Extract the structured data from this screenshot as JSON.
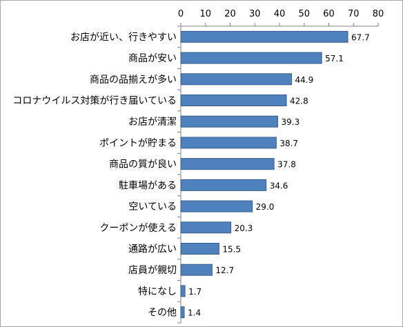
{
  "chart_data": {
    "type": "bar",
    "orientation": "horizontal",
    "categories": [
      "お店が近い、行きやすい",
      "商品が安い",
      "商品の品揃えが多い",
      "コロナウイルス対策が行き届いている",
      "お店が清潔",
      "ポイントが貯まる",
      "商品の質が良い",
      "駐車場がある",
      "空いている",
      "クーポンが使える",
      "通路が広い",
      "店員が親切",
      "特になし",
      "その他"
    ],
    "values": [
      67.7,
      57.1,
      44.9,
      42.8,
      39.3,
      38.7,
      37.8,
      34.6,
      29.0,
      20.3,
      15.5,
      12.7,
      1.7,
      1.4
    ],
    "value_labels": [
      "67.7",
      "57.1",
      "44.9",
      "42.8",
      "39.3",
      "38.7",
      "37.8",
      "34.6",
      "29.0",
      "20.3",
      "15.5",
      "12.7",
      "1.7",
      "1.4"
    ],
    "xlim": [
      0,
      80
    ],
    "xticks": [
      0,
      10,
      20,
      30,
      40,
      50,
      60,
      70,
      80
    ],
    "x_axis_position": "top",
    "grid": false,
    "legend": "none",
    "bar_color": "#4f81bd",
    "bar_edge_color": "#385d8a",
    "title": "",
    "xlabel": "",
    "ylabel": ""
  }
}
